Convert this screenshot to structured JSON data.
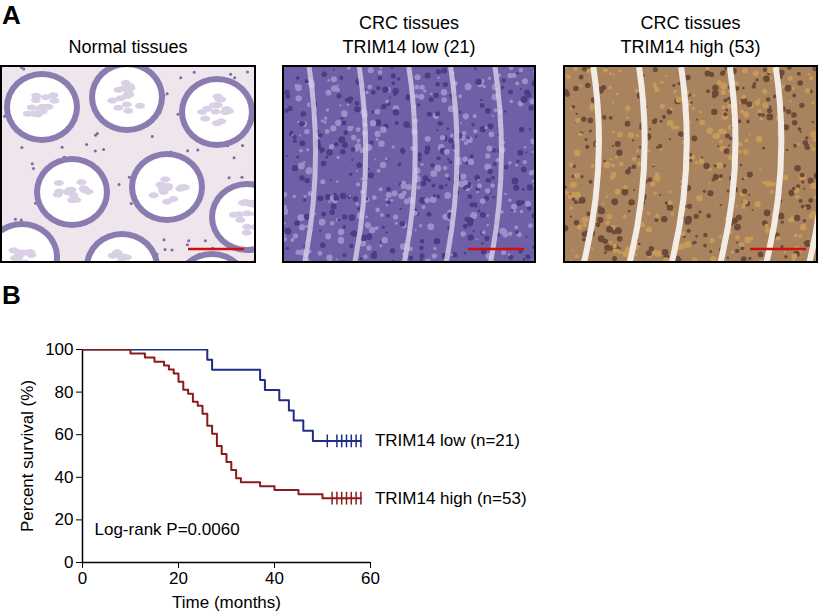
{
  "panel_a": {
    "label": "A",
    "images": [
      {
        "title": [
          "Normal tissues"
        ]
      },
      {
        "title": [
          "CRC tissues",
          "TRIM14 low (21)"
        ]
      },
      {
        "title": [
          "CRC tissues",
          "TRIM14 high (53)"
        ]
      }
    ]
  },
  "panel_b": {
    "label": "B"
  },
  "chart_data": {
    "type": "step",
    "xlabel": "Time (months)",
    "ylabel": "Percent survival (%)",
    "xlim": [
      0,
      60
    ],
    "xticks": [
      0,
      20,
      40,
      60
    ],
    "ylim": [
      0,
      100
    ],
    "yticks": [
      0,
      20,
      40,
      60,
      80,
      100
    ],
    "annotation": "Log-rank P=0.0060",
    "series": [
      {
        "name": "TRIM14 low (n=21)",
        "color": "#1f2d86",
        "x": [
          0,
          26,
          27,
          37,
          38,
          41,
          43,
          44,
          46,
          48,
          58
        ],
        "values": [
          100,
          95.2,
          90.5,
          85.7,
          81.0,
          76.2,
          71.4,
          66.7,
          61.9,
          57.1,
          57.1
        ],
        "censored": [
          51,
          53,
          54,
          55,
          56,
          57,
          58
        ]
      },
      {
        "name": "TRIM14 high (n=53)",
        "color": "#8b1a1a",
        "x": [
          0,
          10,
          13,
          15,
          17,
          18,
          19,
          20,
          21,
          22,
          23,
          24,
          25,
          26,
          27,
          28,
          29,
          30,
          31,
          32,
          33,
          37,
          40,
          45,
          50,
          58
        ],
        "values": [
          100,
          98.1,
          96.2,
          94.3,
          92.5,
          90.6,
          88.7,
          84.9,
          81.1,
          79.2,
          75.5,
          73.6,
          69.8,
          64.2,
          60.4,
          54.7,
          50.9,
          47.2,
          43.4,
          39.6,
          37.7,
          35.8,
          34.0,
          32.1,
          30.2,
          30.2
        ],
        "censored": [
          52,
          53,
          54,
          55,
          56,
          57,
          58
        ]
      }
    ]
  }
}
